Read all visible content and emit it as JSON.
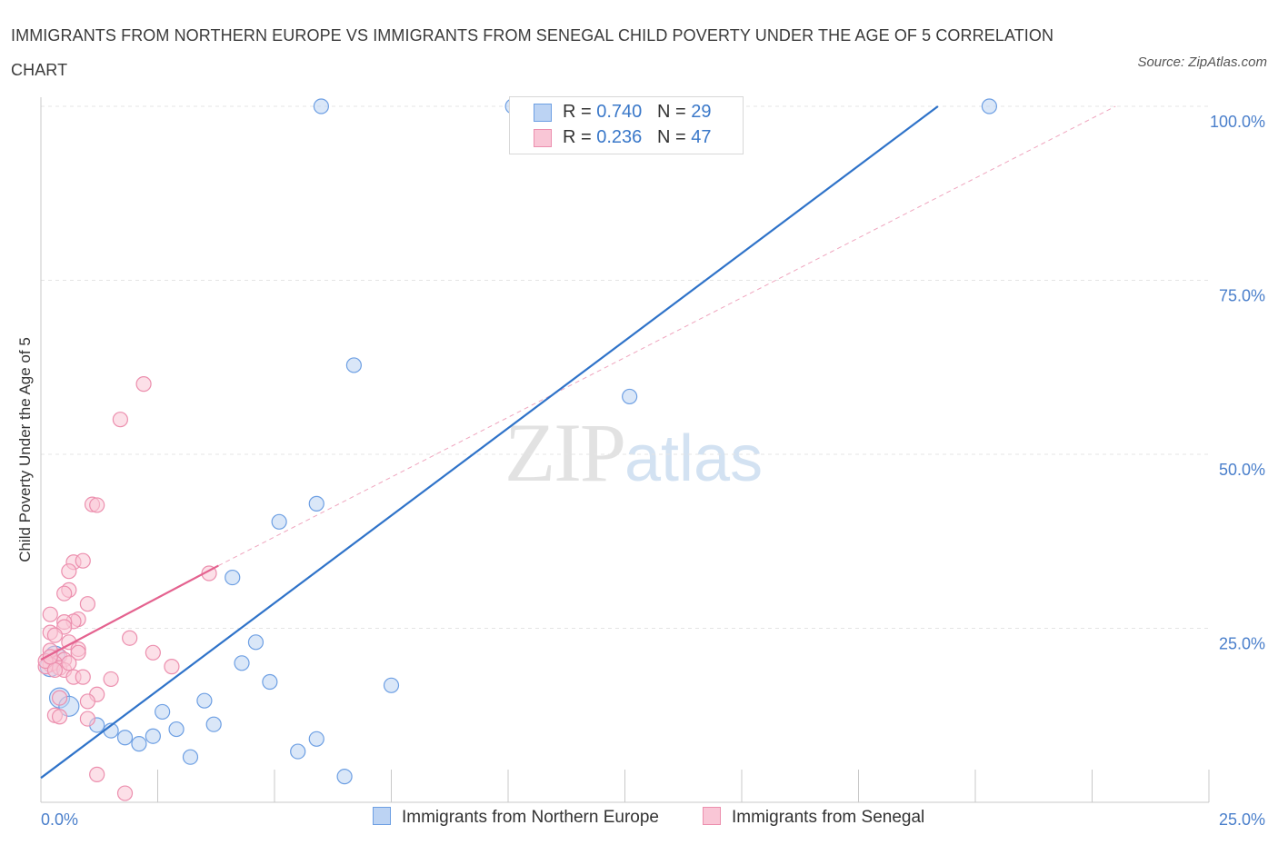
{
  "title": "IMMIGRANTS FROM NORTHERN EUROPE VS IMMIGRANTS FROM SENEGAL CHILD POVERTY UNDER THE AGE OF 5 CORRELATION CHART",
  "source": "Source: ZipAtlas.com",
  "watermark": {
    "zip": "ZIP",
    "atlas": "atlas"
  },
  "legend_top": {
    "rows": [
      {
        "r_label": "R = ",
        "r_value": "0.740",
        "n_label": "N = ",
        "n_value": "29"
      },
      {
        "r_label": "R = ",
        "r_value": "0.236",
        "n_label": "N = ",
        "n_value": "47"
      }
    ]
  },
  "chart_data": {
    "type": "scatter",
    "title": "IMMIGRANTS FROM NORTHERN EUROPE VS IMMIGRANTS FROM SENEGAL CHILD POVERTY UNDER THE AGE OF 5 CORRELATION CHART",
    "xlabel": "",
    "ylabel": "Child Poverty Under the Age of 5",
    "xlim": [
      0,
      25
    ],
    "ylim": [
      0,
      100
    ],
    "x_tick_labels": [
      "0.0%",
      "25.0%"
    ],
    "y_tick_labels": [
      "100.0%",
      "75.0%",
      "50.0%",
      "25.0%"
    ],
    "y_ticks": [
      100,
      75,
      50,
      25
    ],
    "grid": true,
    "legend": "bottom",
    "series": [
      {
        "name": "Immigrants from Northern Europe",
        "color": "#6d9fe3",
        "fill": "#bcd3f3",
        "R": 0.74,
        "N": 29,
        "trend": {
          "x": [
            0,
            19.2
          ],
          "y": [
            3.5,
            100
          ]
        },
        "points": [
          {
            "x": 6.0,
            "y": 100.0
          },
          {
            "x": 20.3,
            "y": 100.0
          },
          {
            "x": 10.1,
            "y": 100.0
          },
          {
            "x": 6.7,
            "y": 62.8
          },
          {
            "x": 12.6,
            "y": 58.3
          },
          {
            "x": 5.9,
            "y": 42.9
          },
          {
            "x": 5.1,
            "y": 40.3
          },
          {
            "x": 4.1,
            "y": 32.3
          },
          {
            "x": 4.6,
            "y": 23.0
          },
          {
            "x": 4.3,
            "y": 20.0
          },
          {
            "x": 4.9,
            "y": 17.3
          },
          {
            "x": 7.5,
            "y": 16.8
          },
          {
            "x": 3.5,
            "y": 14.6
          },
          {
            "x": 2.6,
            "y": 13.0
          },
          {
            "x": 3.7,
            "y": 11.2
          },
          {
            "x": 1.2,
            "y": 11.1
          },
          {
            "x": 1.5,
            "y": 10.3
          },
          {
            "x": 2.9,
            "y": 10.5
          },
          {
            "x": 2.4,
            "y": 9.5
          },
          {
            "x": 1.8,
            "y": 9.3
          },
          {
            "x": 2.1,
            "y": 8.4
          },
          {
            "x": 5.9,
            "y": 9.1
          },
          {
            "x": 5.5,
            "y": 7.3
          },
          {
            "x": 3.2,
            "y": 6.5
          },
          {
            "x": 6.5,
            "y": 3.7
          },
          {
            "x": 0.4,
            "y": 15.0
          },
          {
            "x": 0.6,
            "y": 13.8
          },
          {
            "x": 0.2,
            "y": 19.5
          },
          {
            "x": 0.3,
            "y": 21.0
          }
        ]
      },
      {
        "name": "Immigrants from Senegal",
        "color": "#ec8fae",
        "fill": "#f9c6d6",
        "R": 0.236,
        "N": 47,
        "trend": {
          "x": [
            0,
            3.8
          ],
          "y": [
            20.5,
            34.0
          ]
        },
        "trend_extension": {
          "x": [
            3.8,
            23.0
          ],
          "y": [
            34.0,
            100.0
          ]
        },
        "points": [
          {
            "x": 2.2,
            "y": 60.1
          },
          {
            "x": 1.7,
            "y": 55.0
          },
          {
            "x": 1.1,
            "y": 42.8
          },
          {
            "x": 1.2,
            "y": 42.7
          },
          {
            "x": 0.7,
            "y": 34.5
          },
          {
            "x": 0.9,
            "y": 34.7
          },
          {
            "x": 0.6,
            "y": 33.2
          },
          {
            "x": 3.6,
            "y": 32.9
          },
          {
            "x": 0.6,
            "y": 30.5
          },
          {
            "x": 0.5,
            "y": 30.0
          },
          {
            "x": 1.0,
            "y": 28.5
          },
          {
            "x": 0.2,
            "y": 27.0
          },
          {
            "x": 0.8,
            "y": 26.3
          },
          {
            "x": 0.7,
            "y": 26.0
          },
          {
            "x": 0.5,
            "y": 25.9
          },
          {
            "x": 0.5,
            "y": 25.2
          },
          {
            "x": 0.2,
            "y": 24.4
          },
          {
            "x": 0.3,
            "y": 24.0
          },
          {
            "x": 1.9,
            "y": 23.6
          },
          {
            "x": 0.6,
            "y": 23.0
          },
          {
            "x": 0.8,
            "y": 22.0
          },
          {
            "x": 0.8,
            "y": 21.5
          },
          {
            "x": 2.4,
            "y": 21.5
          },
          {
            "x": 0.4,
            "y": 21.0
          },
          {
            "x": 0.5,
            "y": 20.5
          },
          {
            "x": 0.3,
            "y": 20.0
          },
          {
            "x": 0.2,
            "y": 19.8
          },
          {
            "x": 0.1,
            "y": 19.5
          },
          {
            "x": 0.4,
            "y": 19.3
          },
          {
            "x": 0.5,
            "y": 19.0
          },
          {
            "x": 2.8,
            "y": 19.5
          },
          {
            "x": 0.7,
            "y": 18.0
          },
          {
            "x": 0.9,
            "y": 18.0
          },
          {
            "x": 1.5,
            "y": 17.7
          },
          {
            "x": 1.2,
            "y": 15.5
          },
          {
            "x": 0.4,
            "y": 15.0
          },
          {
            "x": 1.0,
            "y": 14.5
          },
          {
            "x": 0.3,
            "y": 12.5
          },
          {
            "x": 0.4,
            "y": 12.3
          },
          {
            "x": 1.0,
            "y": 12.0
          },
          {
            "x": 1.2,
            "y": 4.0
          },
          {
            "x": 1.8,
            "y": 1.3
          },
          {
            "x": 0.2,
            "y": 21.8
          },
          {
            "x": 0.1,
            "y": 20.3
          },
          {
            "x": 0.3,
            "y": 19.0
          },
          {
            "x": 0.6,
            "y": 20.0
          },
          {
            "x": 0.2,
            "y": 20.9
          }
        ]
      }
    ]
  }
}
